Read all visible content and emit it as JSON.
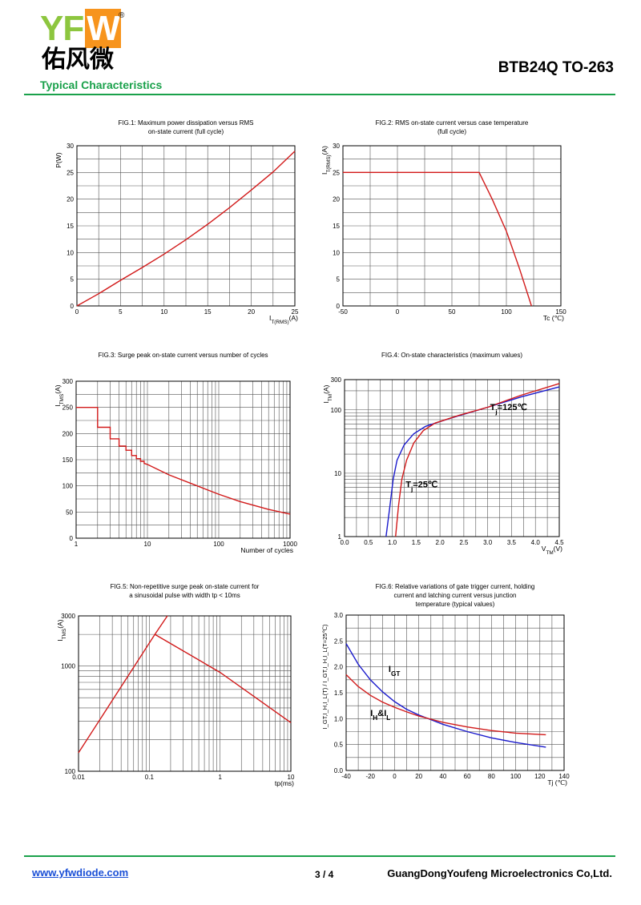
{
  "header": {
    "logo_latin": "YFW",
    "logo_registered": "®",
    "logo_chinese": "佑风微",
    "part_number": "BTB24Q TO-263",
    "section_title": "Typical Characteristics"
  },
  "footer": {
    "url": "www.yfwdiode.com",
    "page": "3 / 4",
    "company": "GuangDongYoufeng Microelectronics Co,Ltd."
  },
  "colors": {
    "brand_green": "#1aa14b",
    "curve_red": "#d21a1a",
    "curve_blue": "#1a1acc",
    "grid": "#555555"
  },
  "chart_data": [
    {
      "id": "fig1",
      "type": "line",
      "title": [
        "FIG.1: Maximum power dissipation versus RMS",
        "on-state current (full cycle)"
      ],
      "ylabel": "P(W)",
      "xlabel": "I",
      "xlabel_sub": "T(RMS)",
      "xlabel_tail": "(A)",
      "xscale": "linear",
      "yscale": "linear",
      "xlim": [
        0,
        25
      ],
      "ylim": [
        0,
        30
      ],
      "xticks": [
        0,
        5,
        10,
        15,
        20,
        25
      ],
      "yticks": [
        0,
        5,
        10,
        15,
        20,
        25,
        30
      ],
      "xgrid": [
        0,
        2.5,
        5,
        7.5,
        10,
        12.5,
        15,
        17.5,
        20,
        22.5,
        25
      ],
      "ygrid": [
        0,
        2.5,
        5,
        7.5,
        10,
        12.5,
        15,
        17.5,
        20,
        22.5,
        25,
        27.5,
        30
      ],
      "series": [
        {
          "color": "red",
          "points": [
            [
              0,
              0
            ],
            [
              2.5,
              2.3
            ],
            [
              5,
              4.8
            ],
            [
              7.5,
              7.2
            ],
            [
              10,
              9.7
            ],
            [
              12.5,
              12.4
            ],
            [
              15,
              15.3
            ],
            [
              17.5,
              18.4
            ],
            [
              20,
              21.7
            ],
            [
              22.5,
              25.1
            ],
            [
              25,
              29
            ]
          ]
        }
      ],
      "annotations": []
    },
    {
      "id": "fig2",
      "type": "line",
      "title": [
        "FIG.2: RMS on-state current versus case temperature",
        "(full cycle)"
      ],
      "ylabel": "I",
      "ylabel_sub": "T(RMS)",
      "ylabel_tail": "(A)",
      "xlabel": "Tc (℃)",
      "xscale": "linear",
      "yscale": "linear",
      "xlim": [
        -50,
        150
      ],
      "ylim": [
        0,
        30
      ],
      "xticks": [
        -50,
        0,
        50,
        100,
        150
      ],
      "yticks": [
        0,
        5,
        10,
        15,
        20,
        25,
        30
      ],
      "xgrid": [
        -50,
        -25,
        0,
        25,
        50,
        75,
        100,
        125,
        150
      ],
      "ygrid": [
        0,
        2.5,
        5,
        7.5,
        10,
        12.5,
        15,
        17.5,
        20,
        22.5,
        25,
        27.5,
        30
      ],
      "series": [
        {
          "color": "red",
          "points": [
            [
              -50,
              25
            ],
            [
              75,
              25
            ],
            [
              87,
              20
            ],
            [
              100,
              14
            ],
            [
              112,
              7
            ],
            [
              123,
              0
            ]
          ]
        }
      ],
      "annotations": []
    },
    {
      "id": "fig3",
      "type": "line",
      "title": [
        "FIG.3: Surge peak on-state current versus number of cycles"
      ],
      "ylabel": "I",
      "ylabel_sub": "TMS",
      "ylabel_tail": "(A)",
      "xlabel": "Number of cycles",
      "xscale": "log",
      "yscale": "linear",
      "xlim": [
        1,
        1000
      ],
      "ylim": [
        0,
        300
      ],
      "xticks": [
        1,
        10,
        100,
        1000
      ],
      "yticks": [
        0,
        50,
        100,
        150,
        200,
        250,
        300
      ],
      "ygrid": [
        0,
        25,
        50,
        75,
        100,
        125,
        150,
        175,
        200,
        225,
        250,
        275,
        300
      ],
      "series": [
        {
          "color": "red",
          "points": [
            [
              1,
              250
            ],
            [
              2,
              250
            ],
            [
              2,
              212
            ],
            [
              3,
              212
            ],
            [
              3,
              190
            ],
            [
              4,
              190
            ],
            [
              4,
              176
            ],
            [
              5,
              176
            ],
            [
              5,
              168
            ],
            [
              6,
              168
            ],
            [
              6,
              158
            ],
            [
              7,
              158
            ],
            [
              7,
              152
            ],
            [
              8,
              152
            ],
            [
              8,
              147
            ],
            [
              9,
              147
            ],
            [
              9,
              143
            ],
            [
              10,
              141
            ],
            [
              20,
              121
            ],
            [
              50,
              100
            ],
            [
              100,
              84
            ],
            [
              200,
              70
            ],
            [
              500,
              55
            ],
            [
              1000,
              46
            ]
          ]
        }
      ],
      "annotations": []
    },
    {
      "id": "fig4",
      "type": "line",
      "title": [
        "FIG.4: On-state characteristics (maximum values)"
      ],
      "ylabel": "I",
      "ylabel_sub": "TM",
      "ylabel_tail": "(A)",
      "xlabel": "V",
      "xlabel_sub": "TM",
      "xlabel_tail": "(V)",
      "xscale": "linear",
      "yscale": "log",
      "xlim": [
        0,
        4.5
      ],
      "ylim": [
        1,
        300
      ],
      "xticks": [
        0.0,
        0.5,
        1.0,
        1.5,
        2.0,
        2.5,
        3.0,
        3.5,
        4.0,
        4.5
      ],
      "xtick_labels": [
        "0.0",
        "0.5",
        "1.0",
        "1.5",
        "2.0",
        "2.5",
        "3.0",
        "3.5",
        "4.0",
        "4.5"
      ],
      "yticks": [
        1,
        10,
        100,
        300
      ],
      "xgrid": [
        0,
        0.25,
        0.5,
        0.75,
        1.0,
        1.25,
        1.5,
        1.75,
        2.0,
        2.25,
        2.5,
        2.75,
        3.0,
        3.25,
        3.5,
        3.75,
        4.0,
        4.25,
        4.5
      ],
      "series": [
        {
          "color": "blue",
          "points": [
            [
              0.87,
              1
            ],
            [
              0.95,
              3
            ],
            [
              1.02,
              8
            ],
            [
              1.1,
              16
            ],
            [
              1.25,
              28
            ],
            [
              1.45,
              42
            ],
            [
              1.7,
              55
            ],
            [
              2.2,
              73
            ],
            [
              3.0,
              110
            ],
            [
              3.7,
              160
            ],
            [
              4.5,
              230
            ]
          ]
        },
        {
          "color": "red",
          "points": [
            [
              1.07,
              1
            ],
            [
              1.13,
              3
            ],
            [
              1.2,
              8
            ],
            [
              1.3,
              16
            ],
            [
              1.45,
              30
            ],
            [
              1.65,
              47
            ],
            [
              1.9,
              62
            ],
            [
              2.4,
              82
            ],
            [
              3.0,
              110
            ],
            [
              3.7,
              170
            ],
            [
              4.5,
              260
            ]
          ]
        }
      ],
      "annotations": [
        {
          "text": "T",
          "sub": "j",
          "tail": "=125℃",
          "x": 3.05,
          "y": 100
        },
        {
          "text": "T",
          "sub": "j",
          "tail": "=25℃",
          "x": 1.28,
          "y": 6
        }
      ]
    },
    {
      "id": "fig5",
      "type": "line",
      "title": [
        "FIG.5: Non-repetitive surge peak on-state current for",
        "a sinusoidal pulse with width tp < 10ms"
      ],
      "ylabel": "I",
      "ylabel_sub": "TMS",
      "ylabel_tail": "(A)",
      "xlabel": "tp(ms)",
      "xscale": "log",
      "yscale": "log",
      "xlim": [
        0.01,
        10
      ],
      "ylim": [
        100,
        3000
      ],
      "xticks": [
        0.01,
        0.1,
        1,
        10
      ],
      "xtick_labels": [
        "0.01",
        "0.1",
        "1",
        "10"
      ],
      "yticks": [
        100,
        1000,
        3000
      ],
      "series": [
        {
          "color": "red",
          "points": [
            [
              0.01,
              150
            ],
            [
              0.12,
              2000
            ],
            [
              0.18,
              3000
            ]
          ]
        },
        {
          "color": "red",
          "points": [
            [
              0.12,
              2000
            ],
            [
              1,
              870
            ],
            [
              10,
              290
            ]
          ]
        }
      ],
      "annotations": []
    },
    {
      "id": "fig6",
      "type": "line",
      "title": [
        "FIG.6: Relative variations of gate trigger current, holding",
        "current and latching current versus junction",
        "temperature (typical values)"
      ],
      "ylabel": "I_GT,I_H,I_L(T) / I_GT,I_H,I_L(T=25℃)",
      "xlabel": "Tj (℃)",
      "xscale": "linear",
      "yscale": "linear",
      "xlim": [
        -40,
        140
      ],
      "ylim": [
        0,
        3.0
      ],
      "xticks": [
        -40,
        -20,
        0,
        20,
        40,
        60,
        80,
        100,
        120,
        140
      ],
      "yticks": [
        0.0,
        0.5,
        1.0,
        1.5,
        2.0,
        2.5,
        3.0
      ],
      "ytick_labels": [
        "0.0",
        "0.5",
        "1.0",
        "1.5",
        "2.0",
        "2.5",
        "3.0"
      ],
      "xgrid": [
        -40,
        -30,
        -20,
        -10,
        0,
        10,
        20,
        30,
        40,
        50,
        60,
        70,
        80,
        90,
        100,
        110,
        120,
        130,
        140
      ],
      "ygrid": [
        0,
        0.25,
        0.5,
        0.75,
        1.0,
        1.25,
        1.5,
        1.75,
        2.0,
        2.25,
        2.5,
        2.75,
        3.0
      ],
      "series": [
        {
          "name": "IGT",
          "color": "blue",
          "points": [
            [
              -40,
              2.45
            ],
            [
              -30,
              2.05
            ],
            [
              -20,
              1.75
            ],
            [
              -10,
              1.52
            ],
            [
              0,
              1.33
            ],
            [
              10,
              1.18
            ],
            [
              20,
              1.07
            ],
            [
              30,
              0.98
            ],
            [
              40,
              0.89
            ],
            [
              60,
              0.75
            ],
            [
              80,
              0.63
            ],
            [
              100,
              0.54
            ],
            [
              125,
              0.45
            ]
          ]
        },
        {
          "name": "IH&IL",
          "color": "red",
          "points": [
            [
              -40,
              1.85
            ],
            [
              -30,
              1.62
            ],
            [
              -20,
              1.45
            ],
            [
              -10,
              1.32
            ],
            [
              0,
              1.22
            ],
            [
              10,
              1.13
            ],
            [
              20,
              1.05
            ],
            [
              30,
              0.99
            ],
            [
              40,
              0.93
            ],
            [
              60,
              0.84
            ],
            [
              80,
              0.77
            ],
            [
              100,
              0.72
            ],
            [
              125,
              0.69
            ]
          ]
        }
      ],
      "annotations": [
        {
          "text": "I",
          "sub": "GT",
          "tail": "",
          "x": -5,
          "y": 1.9
        },
        {
          "text": "I",
          "sub": "H",
          "tail": "&I",
          "sub2": "L",
          "x": -20,
          "y": 1.05
        }
      ]
    }
  ]
}
